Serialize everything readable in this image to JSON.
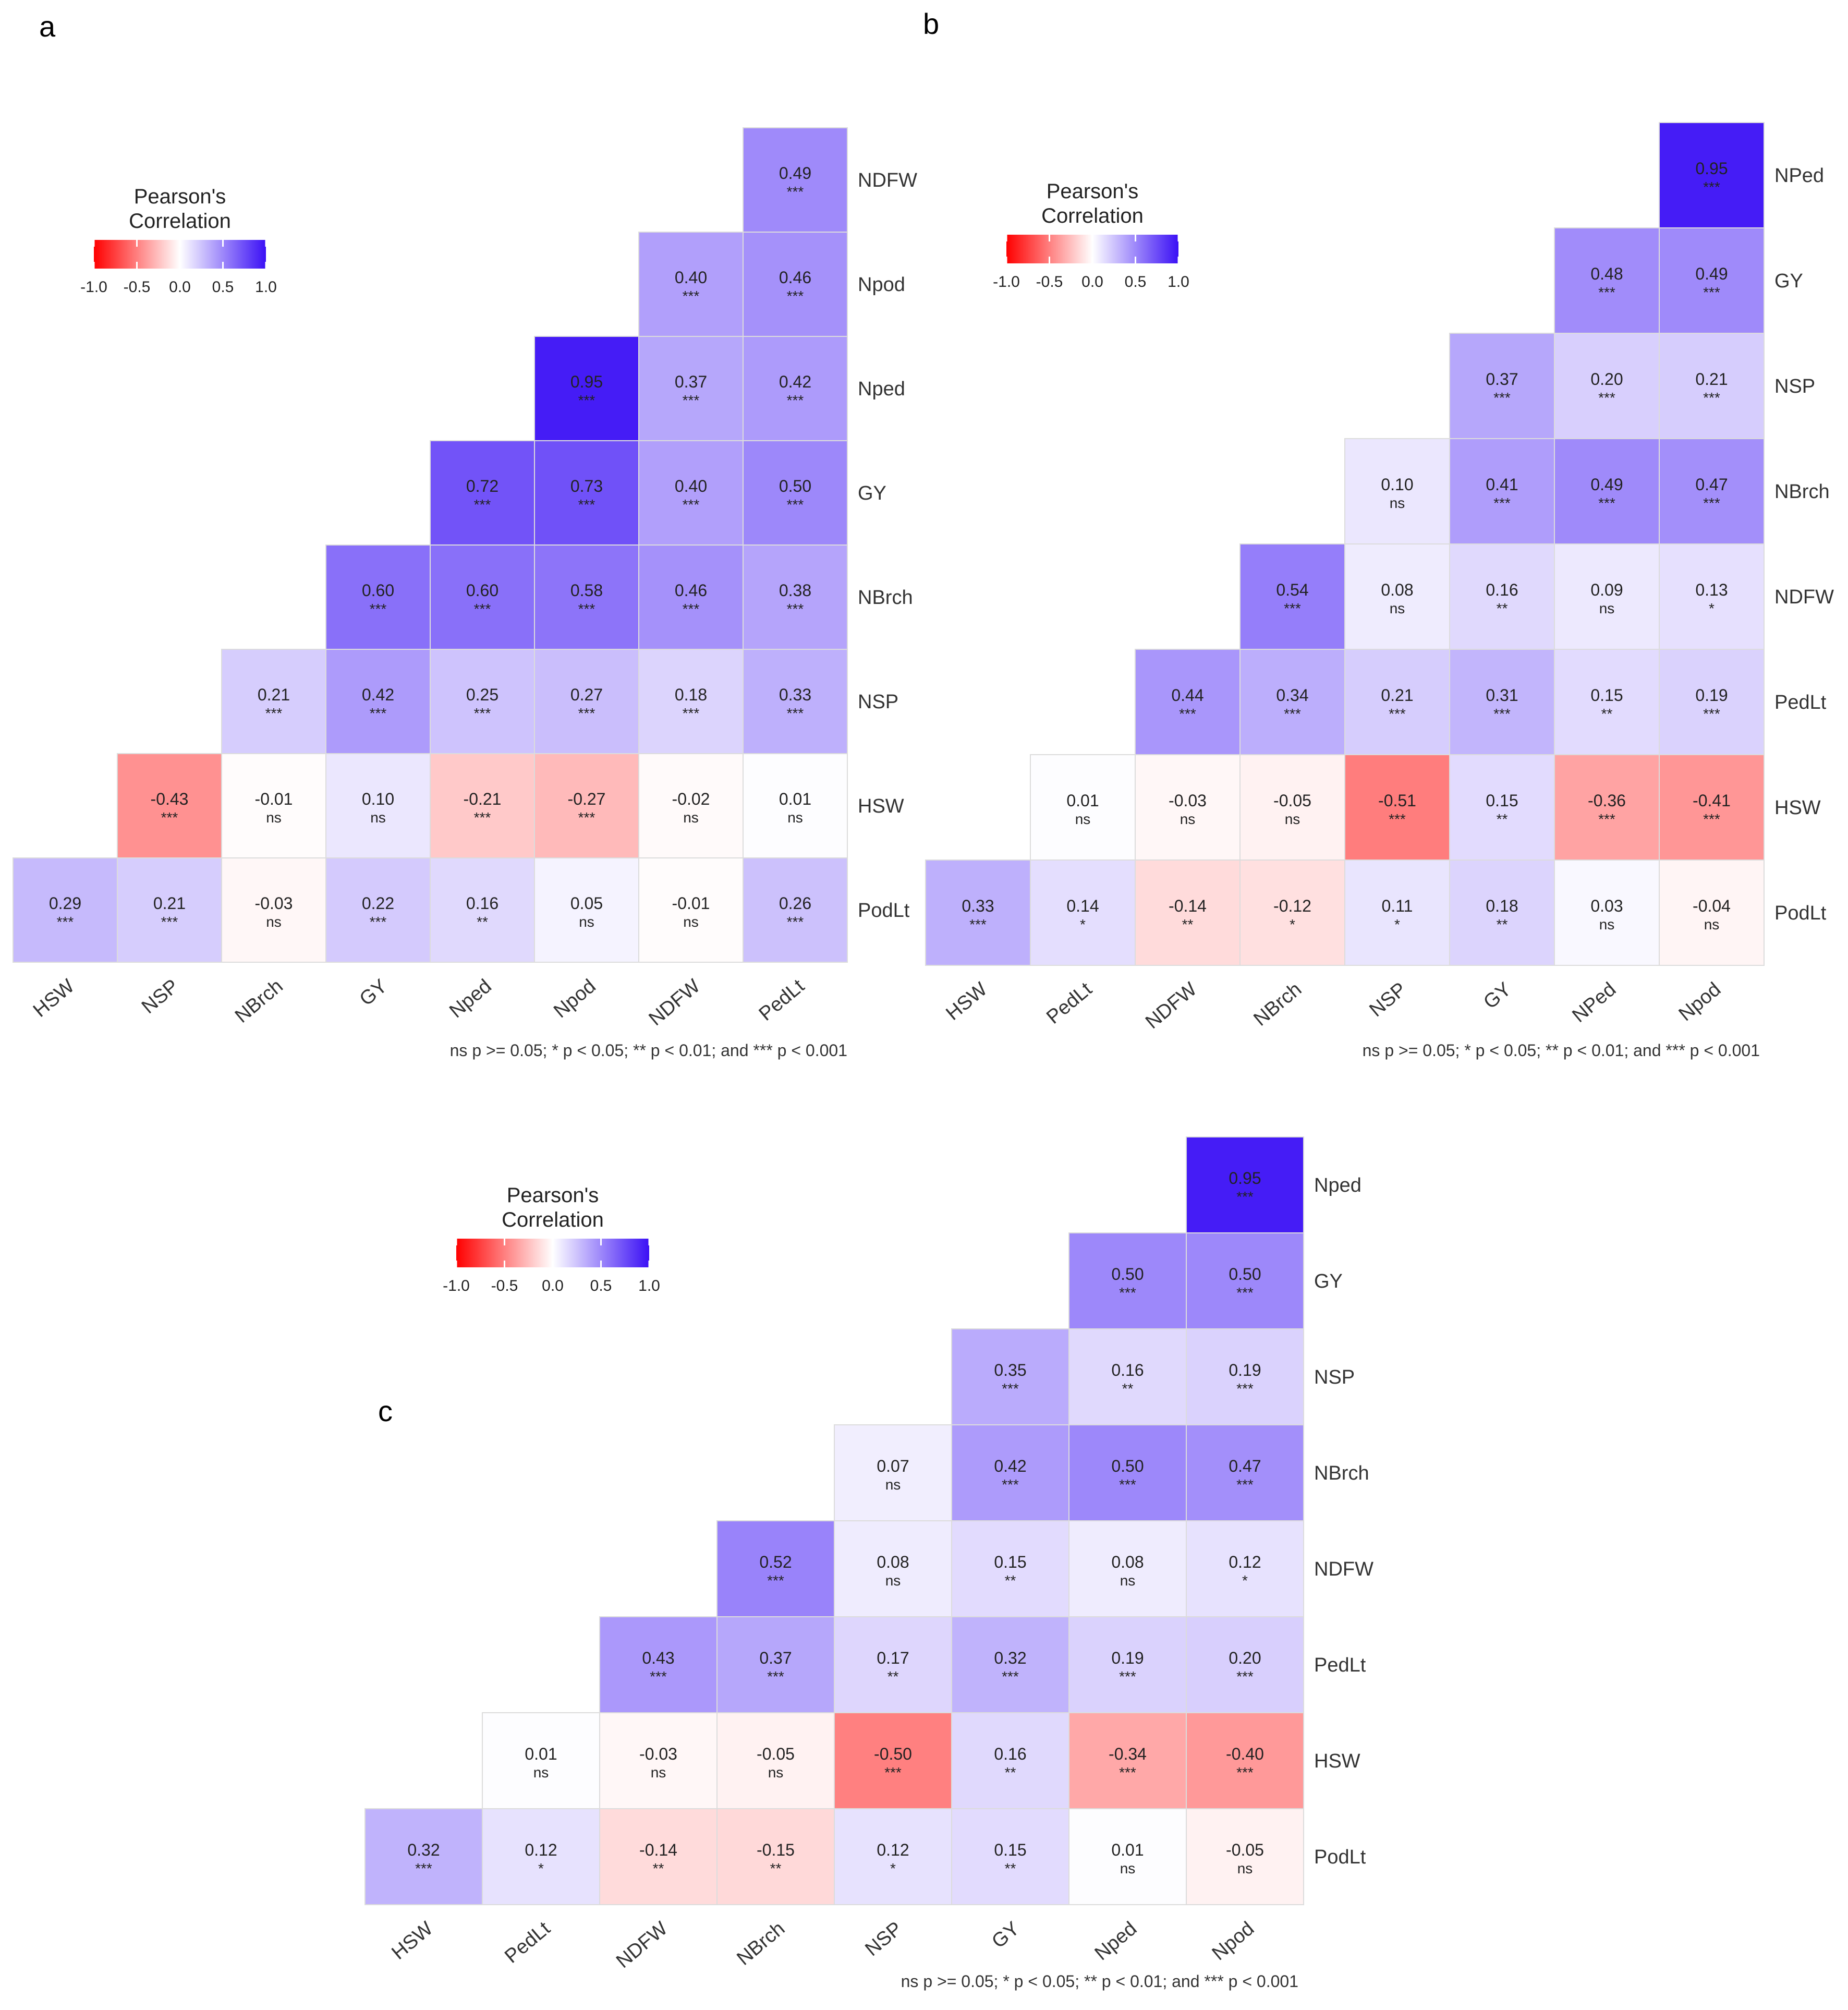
{
  "chart_data": [
    {
      "type": "heatmap",
      "panel_label": "a",
      "title": "",
      "legend": {
        "title": [
          "Pearson's",
          "Correlation"
        ],
        "ticks": [
          "-1.0",
          "-0.5",
          "0.0",
          "0.5",
          "1.0"
        ],
        "range": [
          -1,
          1
        ]
      },
      "x_labels": [
        "HSW",
        "NSP",
        "NBrch",
        "GY",
        "Nped",
        "Npod",
        "NDFW",
        "PedLt"
      ],
      "y_labels": [
        "NDFW",
        "Npod",
        "Nped",
        "GY",
        "NBrch",
        "NSP",
        "HSW",
        "PodLt"
      ],
      "rows": [
        [
          null,
          null,
          null,
          null,
          null,
          null,
          null,
          "0.49"
        ],
        [
          null,
          null,
          null,
          null,
          null,
          null,
          "0.40",
          "0.46"
        ],
        [
          null,
          null,
          null,
          null,
          null,
          "0.95",
          "0.37",
          "0.42"
        ],
        [
          null,
          null,
          null,
          null,
          "0.72",
          "0.73",
          "0.40",
          "0.50"
        ],
        [
          null,
          null,
          null,
          "0.60",
          "0.60",
          "0.58",
          "0.46",
          "0.38"
        ],
        [
          null,
          null,
          "0.21",
          "0.42",
          "0.25",
          "0.27",
          "0.18",
          "0.33"
        ],
        [
          null,
          "-0.43",
          "-0.01",
          "0.10",
          "-0.21",
          "-0.27",
          "-0.02",
          "0.01"
        ],
        [
          "0.29",
          "0.21",
          "-0.03",
          "0.22",
          "0.16",
          "0.05",
          "-0.01",
          "0.26"
        ]
      ],
      "sig": [
        [
          null,
          null,
          null,
          null,
          null,
          null,
          null,
          "***"
        ],
        [
          null,
          null,
          null,
          null,
          null,
          null,
          "***",
          "***"
        ],
        [
          null,
          null,
          null,
          null,
          null,
          "***",
          "***",
          "***"
        ],
        [
          null,
          null,
          null,
          null,
          "***",
          "***",
          "***",
          "***"
        ],
        [
          null,
          null,
          null,
          "***",
          "***",
          "***",
          "***",
          "***"
        ],
        [
          null,
          null,
          "***",
          "***",
          "***",
          "***",
          "***",
          "***"
        ],
        [
          null,
          "***",
          "ns",
          "ns",
          "***",
          "***",
          "ns",
          "ns"
        ],
        [
          "***",
          "***",
          "ns",
          "***",
          "**",
          "ns",
          "ns",
          "***"
        ]
      ],
      "footnote": "ns p >= 0.05; * p < 0.05; ** p < 0.01; and *** p < 0.001"
    },
    {
      "type": "heatmap",
      "panel_label": "b",
      "title": "",
      "legend": {
        "title": [
          "Pearson's",
          "Correlation"
        ],
        "ticks": [
          "-1.0",
          "-0.5",
          "0.0",
          "0.5",
          "1.0"
        ],
        "range": [
          -1,
          1
        ]
      },
      "x_labels": [
        "HSW",
        "PedLt",
        "NDFW",
        "NBrch",
        "NSP",
        "GY",
        "NPed",
        "Npod"
      ],
      "y_labels": [
        "NPed",
        "GY",
        "NSP",
        "NBrch",
        "NDFW",
        "PedLt",
        "HSW",
        "PodLt"
      ],
      "rows": [
        [
          null,
          null,
          null,
          null,
          null,
          null,
          null,
          "0.95"
        ],
        [
          null,
          null,
          null,
          null,
          null,
          null,
          "0.48",
          "0.49"
        ],
        [
          null,
          null,
          null,
          null,
          null,
          "0.37",
          "0.20",
          "0.21"
        ],
        [
          null,
          null,
          null,
          null,
          "0.10",
          "0.41",
          "0.49",
          "0.47"
        ],
        [
          null,
          null,
          null,
          "0.54",
          "0.08",
          "0.16",
          "0.09",
          "0.13"
        ],
        [
          null,
          null,
          "0.44",
          "0.34",
          "0.21",
          "0.31",
          "0.15",
          "0.19"
        ],
        [
          null,
          "0.01",
          "-0.03",
          "-0.05",
          "-0.51",
          "0.15",
          "-0.36",
          "-0.41"
        ],
        [
          "0.33",
          "0.14",
          "-0.14",
          "-0.12",
          "0.11",
          "0.18",
          "0.03",
          "-0.04"
        ]
      ],
      "sig": [
        [
          null,
          null,
          null,
          null,
          null,
          null,
          null,
          "***"
        ],
        [
          null,
          null,
          null,
          null,
          null,
          null,
          "***",
          "***"
        ],
        [
          null,
          null,
          null,
          null,
          null,
          "***",
          "***",
          "***"
        ],
        [
          null,
          null,
          null,
          null,
          "ns",
          "***",
          "***",
          "***"
        ],
        [
          null,
          null,
          null,
          "***",
          "ns",
          "**",
          "ns",
          "*"
        ],
        [
          null,
          null,
          "***",
          "***",
          "***",
          "***",
          "**",
          "***"
        ],
        [
          null,
          "ns",
          "ns",
          "ns",
          "***",
          "**",
          "***",
          "***"
        ],
        [
          "***",
          "*",
          "**",
          "*",
          "*",
          "**",
          "ns",
          "ns"
        ]
      ],
      "footnote": "ns p >= 0.05; * p < 0.05; ** p < 0.01; and *** p < 0.001"
    },
    {
      "type": "heatmap",
      "panel_label": "c",
      "title": "",
      "legend": {
        "title": [
          "Pearson's",
          "Correlation"
        ],
        "ticks": [
          "-1.0",
          "-0.5",
          "0.0",
          "0.5",
          "1.0"
        ],
        "range": [
          -1,
          1
        ]
      },
      "x_labels": [
        "HSW",
        "PedLt",
        "NDFW",
        "NBrch",
        "NSP",
        "GY",
        "Nped",
        "Npod"
      ],
      "y_labels": [
        "Nped",
        "GY",
        "NSP",
        "NBrch",
        "NDFW",
        "PedLt",
        "HSW",
        "PodLt"
      ],
      "rows": [
        [
          null,
          null,
          null,
          null,
          null,
          null,
          null,
          "0.95"
        ],
        [
          null,
          null,
          null,
          null,
          null,
          null,
          "0.50",
          "0.50"
        ],
        [
          null,
          null,
          null,
          null,
          null,
          "0.35",
          "0.16",
          "0.19"
        ],
        [
          null,
          null,
          null,
          null,
          "0.07",
          "0.42",
          "0.50",
          "0.47"
        ],
        [
          null,
          null,
          null,
          "0.52",
          "0.08",
          "0.15",
          "0.08",
          "0.12"
        ],
        [
          null,
          null,
          "0.43",
          "0.37",
          "0.17",
          "0.32",
          "0.19",
          "0.20"
        ],
        [
          null,
          "0.01",
          "-0.03",
          "-0.05",
          "-0.50",
          "0.16",
          "-0.34",
          "-0.40"
        ],
        [
          "0.32",
          "0.12",
          "-0.14",
          "-0.15",
          "0.12",
          "0.15",
          "0.01",
          "-0.05"
        ]
      ],
      "sig": [
        [
          null,
          null,
          null,
          null,
          null,
          null,
          null,
          "***"
        ],
        [
          null,
          null,
          null,
          null,
          null,
          null,
          "***",
          "***"
        ],
        [
          null,
          null,
          null,
          null,
          null,
          "***",
          "**",
          "***"
        ],
        [
          null,
          null,
          null,
          null,
          "ns",
          "***",
          "***",
          "***"
        ],
        [
          null,
          null,
          null,
          "***",
          "ns",
          "**",
          "ns",
          "*"
        ],
        [
          null,
          null,
          "***",
          "***",
          "**",
          "***",
          "***",
          "***"
        ],
        [
          null,
          "ns",
          "ns",
          "ns",
          "***",
          "**",
          "***",
          "***"
        ],
        [
          "***",
          "*",
          "**",
          "**",
          "*",
          "**",
          "ns",
          "ns"
        ]
      ],
      "footnote": "ns p >= 0.05; * p < 0.05; ** p < 0.01; and *** p < 0.001"
    }
  ]
}
